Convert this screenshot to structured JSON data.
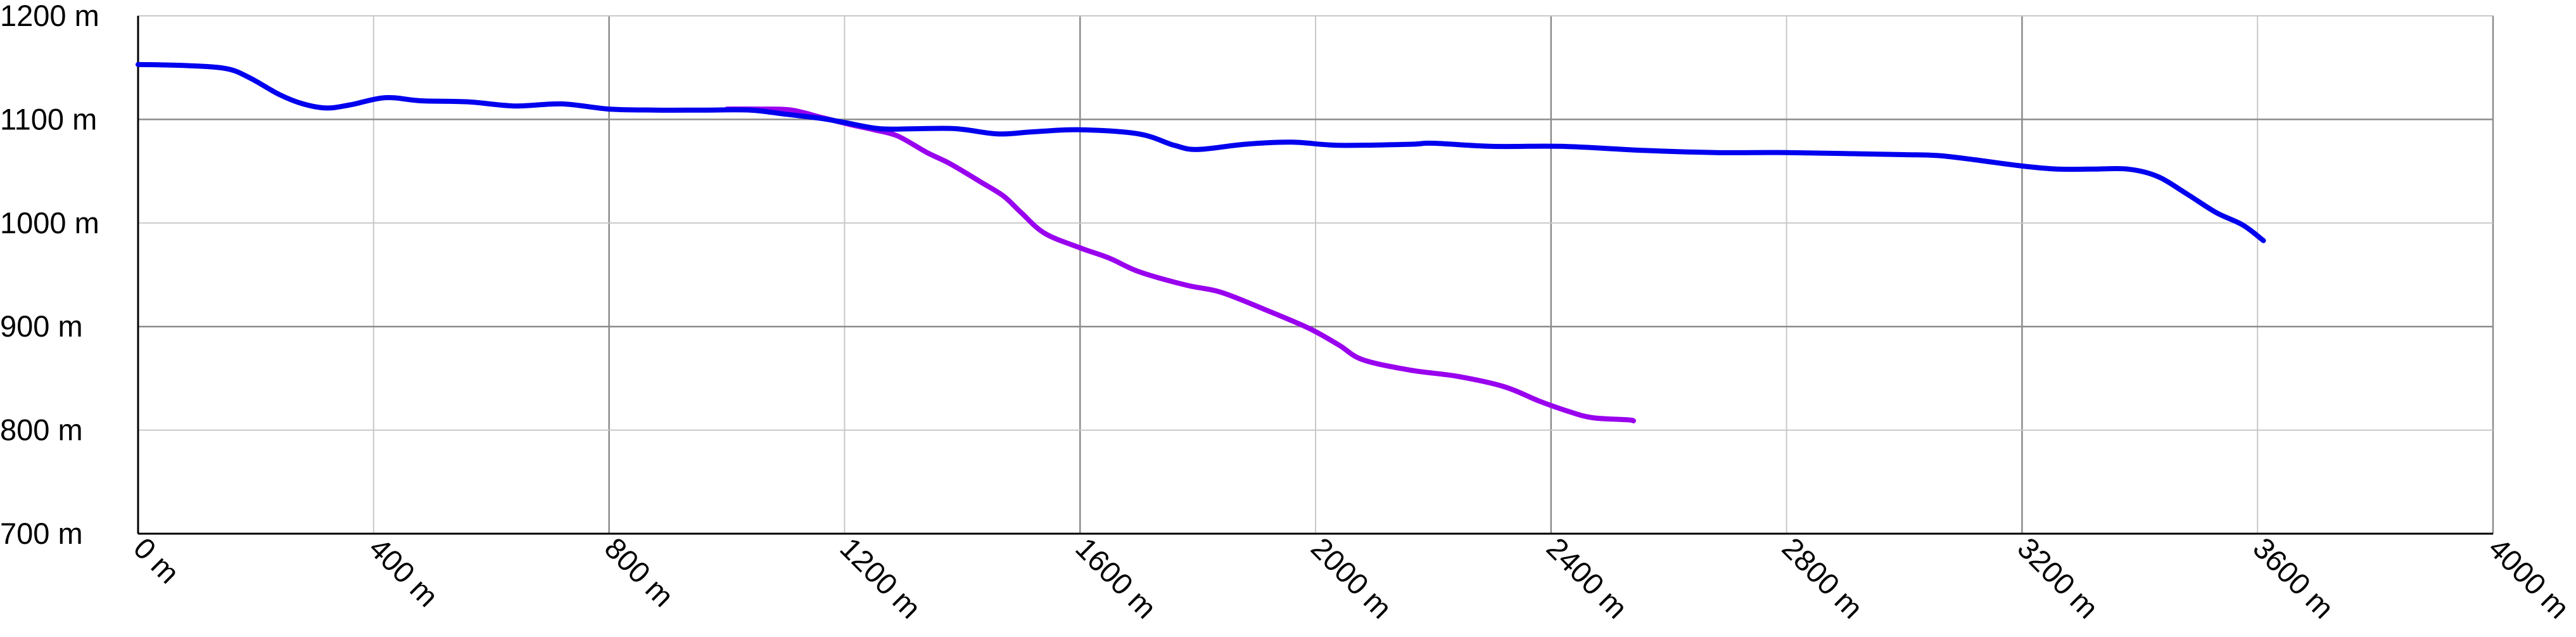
{
  "chart_data": {
    "type": "line",
    "title": "",
    "xlabel": "",
    "ylabel": "",
    "xlim": [
      0,
      4000
    ],
    "ylim": [
      700,
      1200
    ],
    "x_unit": " m",
    "y_unit": " m",
    "x_ticks": [
      0,
      400,
      800,
      1200,
      1600,
      2000,
      2400,
      2800,
      3200,
      3600,
      4000
    ],
    "y_ticks": [
      700,
      800,
      900,
      1000,
      1100,
      1200
    ],
    "x_tick_labels": [
      "0 m",
      "400 m",
      "800 m",
      "1200 m",
      "1600 m",
      "2000 m",
      "2400 m",
      "2800 m",
      "3200 m",
      "3600 m",
      "4000 m"
    ],
    "y_tick_labels": [
      "700 m",
      "800 m",
      "900 m",
      "1000 m",
      "1100 m",
      "1200 m"
    ],
    "grid": true,
    "legend": "none",
    "series": [
      {
        "color": "#0000ee",
        "points": [
          [
            0,
            1153
          ],
          [
            80,
            1152
          ],
          [
            150,
            1149
          ],
          [
            190,
            1140
          ],
          [
            240,
            1124
          ],
          [
            280,
            1115
          ],
          [
            320,
            1111
          ],
          [
            360,
            1114
          ],
          [
            420,
            1121
          ],
          [
            480,
            1118
          ],
          [
            560,
            1117
          ],
          [
            640,
            1113
          ],
          [
            720,
            1115
          ],
          [
            800,
            1110
          ],
          [
            880,
            1109
          ],
          [
            960,
            1109
          ],
          [
            1040,
            1109
          ],
          [
            1100,
            1105
          ],
          [
            1160,
            1101
          ],
          [
            1200,
            1097
          ],
          [
            1260,
            1091
          ],
          [
            1320,
            1091
          ],
          [
            1390,
            1091
          ],
          [
            1460,
            1086
          ],
          [
            1520,
            1088
          ],
          [
            1600,
            1090
          ],
          [
            1700,
            1086
          ],
          [
            1760,
            1075
          ],
          [
            1800,
            1071
          ],
          [
            1880,
            1076
          ],
          [
            1960,
            1078
          ],
          [
            2040,
            1075
          ],
          [
            2160,
            1076
          ],
          [
            2200,
            1077
          ],
          [
            2300,
            1074
          ],
          [
            2420,
            1074
          ],
          [
            2560,
            1070
          ],
          [
            2680,
            1068
          ],
          [
            2800,
            1068
          ],
          [
            2900,
            1067
          ],
          [
            3000,
            1066
          ],
          [
            3060,
            1065
          ],
          [
            3120,
            1061
          ],
          [
            3200,
            1055
          ],
          [
            3260,
            1052
          ],
          [
            3320,
            1052
          ],
          [
            3380,
            1052
          ],
          [
            3430,
            1045
          ],
          [
            3480,
            1028
          ],
          [
            3530,
            1010
          ],
          [
            3575,
            998
          ],
          [
            3610,
            983
          ]
        ]
      },
      {
        "color": "#9900ee",
        "points": [
          [
            1000,
            1110
          ],
          [
            1060,
            1110
          ],
          [
            1110,
            1109
          ],
          [
            1160,
            1102
          ],
          [
            1210,
            1095
          ],
          [
            1250,
            1090
          ],
          [
            1290,
            1084
          ],
          [
            1340,
            1068
          ],
          [
            1380,
            1057
          ],
          [
            1430,
            1040
          ],
          [
            1470,
            1026
          ],
          [
            1500,
            1010
          ],
          [
            1540,
            990
          ],
          [
            1600,
            976
          ],
          [
            1650,
            966
          ],
          [
            1700,
            953
          ],
          [
            1780,
            940
          ],
          [
            1840,
            933
          ],
          [
            1920,
            915
          ],
          [
            1990,
            898
          ],
          [
            2040,
            882
          ],
          [
            2080,
            868
          ],
          [
            2160,
            858
          ],
          [
            2240,
            852
          ],
          [
            2320,
            842
          ],
          [
            2380,
            828
          ],
          [
            2430,
            818
          ],
          [
            2470,
            812
          ],
          [
            2530,
            810
          ],
          [
            2540,
            809
          ]
        ]
      }
    ]
  }
}
